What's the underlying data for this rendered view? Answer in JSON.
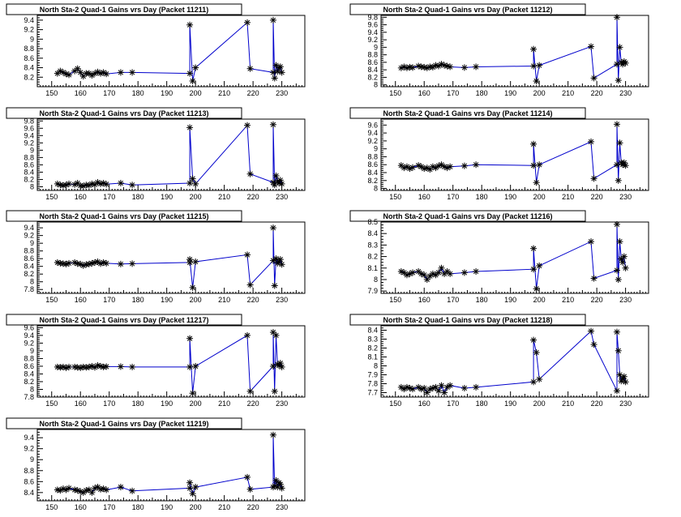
{
  "chart_data": [
    {
      "type": "line",
      "title": "North Sta-2 Quad-1 Gains vrs Day (Packet 11211)",
      "xlabel": "",
      "ylabel": "",
      "xlim": [
        145,
        238
      ],
      "ylim": [
        8.0,
        9.5
      ],
      "xticks": [
        150,
        160,
        170,
        180,
        190,
        200,
        210,
        220,
        230
      ],
      "yticks": [
        "8.2",
        "8.4",
        "8.6",
        "8.8",
        "9",
        "9.2",
        "9.4"
      ],
      "ytick_values": [
        8.2,
        8.4,
        8.6,
        8.8,
        9.0,
        9.2,
        9.4
      ],
      "x": [
        152,
        153,
        154,
        155,
        156,
        158,
        159,
        160,
        161,
        162,
        163,
        164,
        165,
        166,
        167,
        168,
        169,
        174,
        178,
        198,
        198,
        199,
        200,
        218,
        219,
        227,
        227,
        227.5,
        228,
        228.5,
        229,
        229.5,
        230
      ],
      "y": [
        8.28,
        8.33,
        8.3,
        8.27,
        8.25,
        8.33,
        8.38,
        8.3,
        8.22,
        8.28,
        8.28,
        8.24,
        8.28,
        8.31,
        8.28,
        8.3,
        8.27,
        8.3,
        8.3,
        8.28,
        9.3,
        8.12,
        8.4,
        9.35,
        8.38,
        8.3,
        9.4,
        8.18,
        8.45,
        8.32,
        8.4,
        8.42,
        8.3
      ]
    },
    {
      "type": "line",
      "title": "North Sta-2 Quad-1 Gains vrs Day (Packet 11212)",
      "xlabel": "",
      "ylabel": "",
      "xlim": [
        145,
        238
      ],
      "ylim": [
        7.95,
        9.85
      ],
      "xticks": [
        150,
        160,
        170,
        180,
        190,
        200,
        210,
        220,
        230
      ],
      "yticks": [
        "8",
        "8.2",
        "8.4",
        "8.6",
        "8.8",
        "9",
        "9.2",
        "9.4",
        "9.6",
        "9.8"
      ],
      "ytick_values": [
        8.0,
        8.2,
        8.4,
        8.6,
        8.8,
        9.0,
        9.2,
        9.4,
        9.6,
        9.8
      ],
      "x": [
        152,
        153,
        154,
        155,
        156,
        158,
        159,
        160,
        161,
        162,
        163,
        164,
        165,
        166,
        167,
        168,
        169,
        174,
        178,
        198,
        198,
        199,
        200,
        218,
        219,
        227,
        227,
        227.5,
        228,
        228.5,
        229,
        229.5,
        230
      ],
      "y": [
        8.45,
        8.48,
        8.45,
        8.47,
        8.46,
        8.5,
        8.48,
        8.47,
        8.45,
        8.48,
        8.47,
        8.52,
        8.5,
        8.55,
        8.52,
        8.5,
        8.48,
        8.46,
        8.48,
        8.5,
        8.95,
        8.1,
        8.52,
        9.02,
        8.18,
        8.55,
        9.8,
        8.12,
        9.0,
        8.6,
        8.55,
        8.62,
        8.58
      ]
    },
    {
      "type": "line",
      "title": "North Sta-2 Quad-1 Gains vrs Day (Packet 11213)",
      "xlabel": "",
      "ylabel": "",
      "xlim": [
        145,
        238
      ],
      "ylim": [
        7.9,
        9.85
      ],
      "xticks": [
        150,
        160,
        170,
        180,
        190,
        200,
        210,
        220,
        230
      ],
      "yticks": [
        "8",
        "8.2",
        "8.4",
        "8.6",
        "8.8",
        "9",
        "9.2",
        "9.4",
        "9.6",
        "9.8"
      ],
      "ytick_values": [
        8.0,
        8.2,
        8.4,
        8.6,
        8.8,
        9.0,
        9.2,
        9.4,
        9.6,
        9.8
      ],
      "x": [
        152,
        153,
        154,
        155,
        156,
        158,
        159,
        160,
        161,
        162,
        163,
        164,
        165,
        166,
        167,
        168,
        169,
        174,
        178,
        198,
        198,
        199,
        200,
        218,
        219,
        227,
        227,
        227.5,
        228,
        228.5,
        229,
        229.5,
        230
      ],
      "y": [
        8.08,
        8.05,
        8.04,
        8.05,
        8.08,
        8.06,
        8.1,
        8.03,
        8.02,
        8.05,
        8.04,
        8.08,
        8.06,
        8.12,
        8.08,
        8.1,
        8.07,
        8.1,
        8.05,
        8.1,
        9.62,
        8.22,
        8.08,
        9.68,
        8.35,
        8.12,
        9.7,
        8.05,
        8.3,
        8.15,
        8.1,
        8.18,
        8.08
      ]
    },
    {
      "type": "line",
      "title": "North Sta-2 Quad-1 Gains vrs Day (Packet 11214)",
      "xlabel": "",
      "ylabel": "",
      "xlim": [
        145,
        238
      ],
      "ylim": [
        7.95,
        9.75
      ],
      "xticks": [
        150,
        160,
        170,
        180,
        190,
        200,
        210,
        220,
        230
      ],
      "yticks": [
        "8",
        "8.2",
        "8.4",
        "8.6",
        "8.8",
        "9",
        "9.2",
        "9.4",
        "9.6"
      ],
      "ytick_values": [
        8.0,
        8.2,
        8.4,
        8.6,
        8.8,
        9.0,
        9.2,
        9.4,
        9.6
      ],
      "x": [
        152,
        153,
        154,
        155,
        156,
        158,
        159,
        160,
        161,
        162,
        163,
        164,
        165,
        166,
        167,
        168,
        169,
        174,
        178,
        198,
        198,
        199,
        200,
        218,
        219,
        227,
        227,
        227.5,
        228,
        228.5,
        229,
        229.5,
        230
      ],
      "y": [
        8.58,
        8.52,
        8.55,
        8.5,
        8.53,
        8.58,
        8.55,
        8.5,
        8.52,
        8.48,
        8.55,
        8.52,
        8.57,
        8.6,
        8.55,
        8.52,
        8.55,
        8.57,
        8.6,
        8.58,
        9.12,
        8.15,
        8.6,
        9.18,
        8.25,
        8.6,
        9.62,
        8.2,
        9.15,
        8.65,
        8.6,
        8.65,
        8.58
      ]
    },
    {
      "type": "line",
      "title": "North Sta-2 Quad-1 Gains vrs Day (Packet 11215)",
      "xlabel": "",
      "ylabel": "",
      "xlim": [
        145,
        238
      ],
      "ylim": [
        7.7,
        9.55
      ],
      "xticks": [
        150,
        160,
        170,
        180,
        190,
        200,
        210,
        220,
        230
      ],
      "yticks": [
        "7.8",
        "8",
        "8.2",
        "8.4",
        "8.6",
        "8.8",
        "9",
        "9.2",
        "9.4"
      ],
      "ytick_values": [
        7.8,
        8.0,
        8.2,
        8.4,
        8.6,
        8.8,
        9.0,
        9.2,
        9.4
      ],
      "x": [
        152,
        153,
        154,
        155,
        156,
        158,
        159,
        160,
        161,
        162,
        163,
        164,
        165,
        166,
        167,
        168,
        169,
        174,
        178,
        198,
        198,
        199,
        200,
        218,
        219,
        227,
        227,
        227.5,
        228,
        228.5,
        229,
        229.5,
        230
      ],
      "y": [
        8.5,
        8.48,
        8.47,
        8.46,
        8.48,
        8.5,
        8.47,
        8.46,
        8.42,
        8.45,
        8.46,
        8.48,
        8.5,
        8.52,
        8.47,
        8.5,
        8.48,
        8.46,
        8.47,
        8.5,
        8.58,
        7.85,
        8.52,
        8.7,
        7.92,
        8.55,
        9.4,
        7.9,
        8.6,
        8.48,
        8.52,
        8.58,
        8.45
      ]
    },
    {
      "type": "line",
      "title": "North Sta-2 Quad-1 Gains vrs Day (Packet 11216)",
      "xlabel": "",
      "ylabel": "",
      "xlim": [
        145,
        238
      ],
      "ylim": [
        7.88,
        8.5
      ],
      "xticks": [
        150,
        160,
        170,
        180,
        190,
        200,
        210,
        220,
        230
      ],
      "yticks": [
        "7.9",
        "8",
        "8.1",
        "8.2",
        "8.3",
        "8.4",
        "8.5"
      ],
      "ytick_values": [
        7.9,
        8.0,
        8.1,
        8.2,
        8.3,
        8.4,
        8.5
      ],
      "x": [
        152,
        153,
        154,
        155,
        156,
        158,
        159,
        160,
        161,
        162,
        163,
        164,
        165,
        166,
        167,
        168,
        169,
        174,
        178,
        198,
        198,
        199,
        200,
        218,
        219,
        227,
        227,
        227.5,
        228,
        228.5,
        229,
        229.5,
        230
      ],
      "y": [
        8.07,
        8.06,
        8.04,
        8.05,
        8.06,
        8.07,
        8.05,
        8.04,
        8.0,
        8.03,
        8.05,
        8.04,
        8.06,
        8.1,
        8.05,
        8.07,
        8.05,
        8.06,
        8.07,
        8.09,
        8.27,
        7.92,
        8.12,
        8.33,
        8.01,
        8.08,
        8.48,
        8.0,
        8.33,
        8.18,
        8.15,
        8.2,
        8.1
      ]
    },
    {
      "type": "line",
      "title": "North Sta-2 Quad-1 Gains vrs Day (Packet 11217)",
      "xlabel": "",
      "ylabel": "",
      "xlim": [
        145,
        238
      ],
      "ylim": [
        7.8,
        9.65
      ],
      "xticks": [
        150,
        160,
        170,
        180,
        190,
        200,
        210,
        220,
        230
      ],
      "yticks": [
        "7.8",
        "8",
        "8.2",
        "8.4",
        "8.6",
        "8.8",
        "9",
        "9.2",
        "9.4",
        "9.6"
      ],
      "ytick_values": [
        7.8,
        8.0,
        8.2,
        8.4,
        8.6,
        8.8,
        9.0,
        9.2,
        9.4,
        9.6
      ],
      "x": [
        152,
        153,
        154,
        155,
        156,
        158,
        159,
        160,
        161,
        162,
        163,
        164,
        165,
        166,
        167,
        168,
        169,
        174,
        178,
        198,
        198,
        199,
        200,
        218,
        219,
        227,
        227,
        227.5,
        228,
        228.5,
        229,
        229.5,
        230
      ],
      "y": [
        8.58,
        8.57,
        8.58,
        8.56,
        8.58,
        8.58,
        8.57,
        8.56,
        8.58,
        8.57,
        8.58,
        8.6,
        8.57,
        8.62,
        8.6,
        8.58,
        8.59,
        8.59,
        8.58,
        8.58,
        9.32,
        7.9,
        8.6,
        9.4,
        7.95,
        8.6,
        9.48,
        7.95,
        9.4,
        8.65,
        8.62,
        8.68,
        8.58
      ]
    },
    {
      "type": "line",
      "title": "North Sta-2 Quad-1 Gains vrs Day (Packet 11218)",
      "xlabel": "",
      "ylabel": "",
      "xlim": [
        145,
        238
      ],
      "ylim": [
        7.65,
        8.45
      ],
      "xticks": [
        150,
        160,
        170,
        180,
        190,
        200,
        210,
        220,
        230
      ],
      "yticks": [
        "7.7",
        "7.8",
        "7.9",
        "8",
        "8.1",
        "8.2",
        "8.3",
        "8.4"
      ],
      "ytick_values": [
        7.7,
        7.8,
        7.9,
        8.0,
        8.1,
        8.2,
        8.3,
        8.4
      ],
      "x": [
        152,
        153,
        154,
        155,
        156,
        158,
        159,
        160,
        161,
        162,
        163,
        164,
        165,
        166,
        167,
        168,
        169,
        174,
        178,
        198,
        198,
        199,
        200,
        218,
        219,
        227,
        227,
        227.5,
        228,
        228.5,
        229,
        229.5,
        230
      ],
      "y": [
        7.76,
        7.74,
        7.76,
        7.75,
        7.74,
        7.76,
        7.74,
        7.75,
        7.7,
        7.74,
        7.75,
        7.76,
        7.72,
        7.78,
        7.7,
        7.76,
        7.78,
        7.75,
        7.76,
        7.82,
        8.29,
        8.15,
        7.85,
        8.39,
        8.24,
        7.72,
        8.38,
        8.17,
        7.9,
        7.83,
        7.86,
        7.88,
        7.82
      ]
    },
    {
      "type": "line",
      "title": "North Sta-2 Quad-1 Gains vrs Day (Packet 11219)",
      "xlabel": "",
      "ylabel": "",
      "xlim": [
        145,
        238
      ],
      "ylim": [
        8.25,
        9.55
      ],
      "xticks": [
        150,
        160,
        170,
        180,
        190,
        200,
        210,
        220,
        230
      ],
      "yticks": [
        "8.4",
        "8.6",
        "8.8",
        "9",
        "9.2",
        "9.4"
      ],
      "ytick_values": [
        8.4,
        8.6,
        8.8,
        9.0,
        9.2,
        9.4
      ],
      "x": [
        152,
        153,
        154,
        155,
        156,
        158,
        159,
        160,
        161,
        162,
        163,
        164,
        165,
        166,
        167,
        168,
        169,
        174,
        178,
        198,
        198,
        199,
        200,
        218,
        219,
        227,
        227,
        227.5,
        228,
        228.5,
        229,
        229.5,
        230
      ],
      "y": [
        8.45,
        8.44,
        8.47,
        8.45,
        8.48,
        8.45,
        8.44,
        8.42,
        8.4,
        8.44,
        8.45,
        8.4,
        8.48,
        8.5,
        8.46,
        8.47,
        8.45,
        8.5,
        8.43,
        8.48,
        8.58,
        8.38,
        8.5,
        8.68,
        8.46,
        8.5,
        9.45,
        8.52,
        8.62,
        8.5,
        8.58,
        8.55,
        8.48
      ]
    }
  ]
}
